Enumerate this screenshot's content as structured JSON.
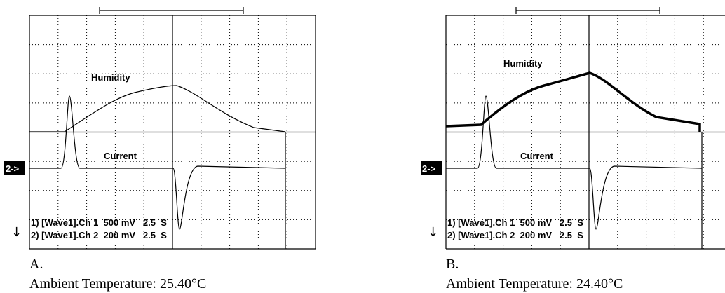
{
  "panels": [
    {
      "label": "A.",
      "caption": "Ambient Temperature: 25.40°C",
      "trace_labels": [
        "Humidity",
        "Current"
      ],
      "channels": [
        "1) [Wave1].Ch 1  500 mV   2.5  S",
        "2) [Wave1].Ch 2  200 mV   2.5  S"
      ],
      "marker": "2->"
    },
    {
      "label": "B.",
      "caption": "Ambient Temperature: 24.40°C",
      "trace_labels": [
        "Humidity",
        "Current"
      ],
      "channels": [
        "1) [Wave1].Ch 1  500 mV   2.5  S",
        "2) [Wave1].Ch 2  200 mV   2.5  S"
      ],
      "marker": "2->"
    }
  ]
}
